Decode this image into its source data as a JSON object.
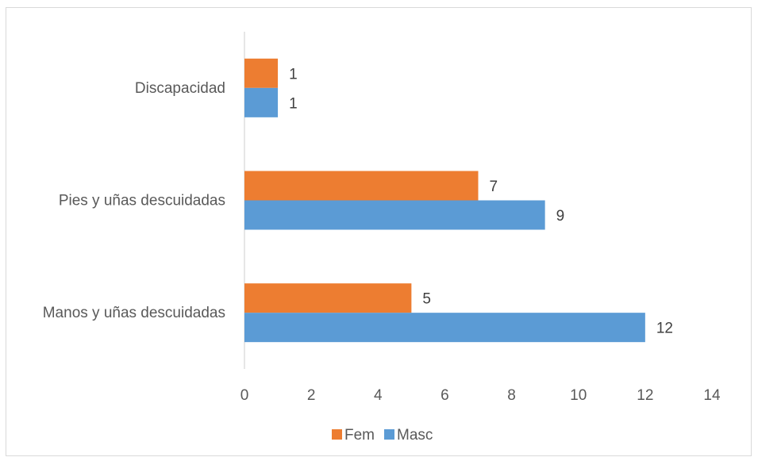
{
  "chart_data": {
    "type": "bar",
    "orientation": "horizontal",
    "categories": [
      "Discapacidad",
      "Pies y uñas descuidadas",
      "Manos y uñas descuidadas"
    ],
    "series": [
      {
        "name": "Fem",
        "values": [
          1,
          7,
          5
        ],
        "color": "#ed7d31"
      },
      {
        "name": "Masc",
        "values": [
          1,
          9,
          12
        ],
        "color": "#5b9bd5"
      }
    ],
    "xlim": [
      0,
      14
    ],
    "xticks": [
      0,
      2,
      4,
      6,
      8,
      10,
      12,
      14
    ],
    "title": "",
    "xlabel": "",
    "ylabel": "",
    "grid": false,
    "legend_position": "bottom",
    "data_labels": true
  }
}
